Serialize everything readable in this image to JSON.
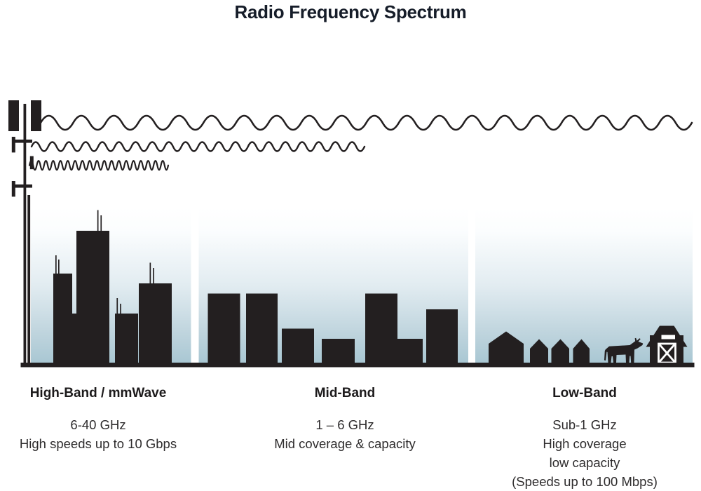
{
  "title": "Radio Frequency Spectrum",
  "bands": [
    {
      "id": "high-band",
      "name": "High-Band / mmWave",
      "lines": [
        "6-40 GHz",
        "High speeds up to 10 Gbps"
      ]
    },
    {
      "id": "mid-band",
      "name": "Mid-Band",
      "lines": [
        "1 – 6 GHz",
        "Mid coverage & capacity"
      ]
    },
    {
      "id": "low-band",
      "name": "Low-Band",
      "lines": [
        "Sub-1 GHz",
        "High coverage",
        "low capacity",
        "(Speeds up to 100 Mbps)"
      ]
    }
  ],
  "illustration": {
    "icons": [
      "cell-tower-icon",
      "long-wave-icon",
      "medium-wave-icon",
      "short-wave-icon",
      "skyscrapers-icon",
      "midrise-buildings-icon",
      "houses-icon",
      "cow-icon",
      "barn-icon",
      "ground-line"
    ],
    "colors": {
      "ink": "#231f20",
      "sky_top": "#ffffff",
      "sky_bottom": "#a9c7d3",
      "title_text": "#161d29",
      "body_text": "#2e2c2d"
    }
  }
}
